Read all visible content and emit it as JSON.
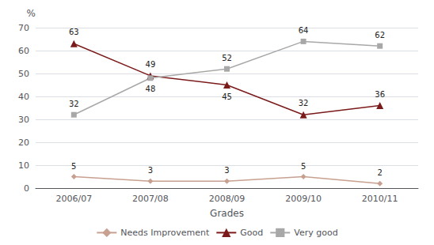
{
  "chart_data": {
    "type": "line",
    "categories": [
      "2006/07",
      "2007/08",
      "2008/09",
      "2009/10",
      "2010/11"
    ],
    "series": [
      {
        "name": "Needs Improvement",
        "color": "#c8a090",
        "marker": "diamond",
        "values": [
          5,
          3,
          3,
          5,
          2
        ]
      },
      {
        "name": "Good",
        "color": "#7b1a1a",
        "marker": "triangle",
        "values": [
          63,
          49,
          45,
          32,
          36
        ]
      },
      {
        "name": "Very good",
        "color": "#a8a8a8",
        "marker": "square",
        "values": [
          32,
          48,
          52,
          64,
          62
        ]
      }
    ],
    "xlabel": "Grades",
    "ylabel": "%",
    "ylim": [
      0,
      70
    ],
    "yticks": [
      0,
      10,
      20,
      30,
      40,
      50,
      60,
      70
    ],
    "grid": true,
    "legend": "bottom",
    "data_labels": true
  }
}
